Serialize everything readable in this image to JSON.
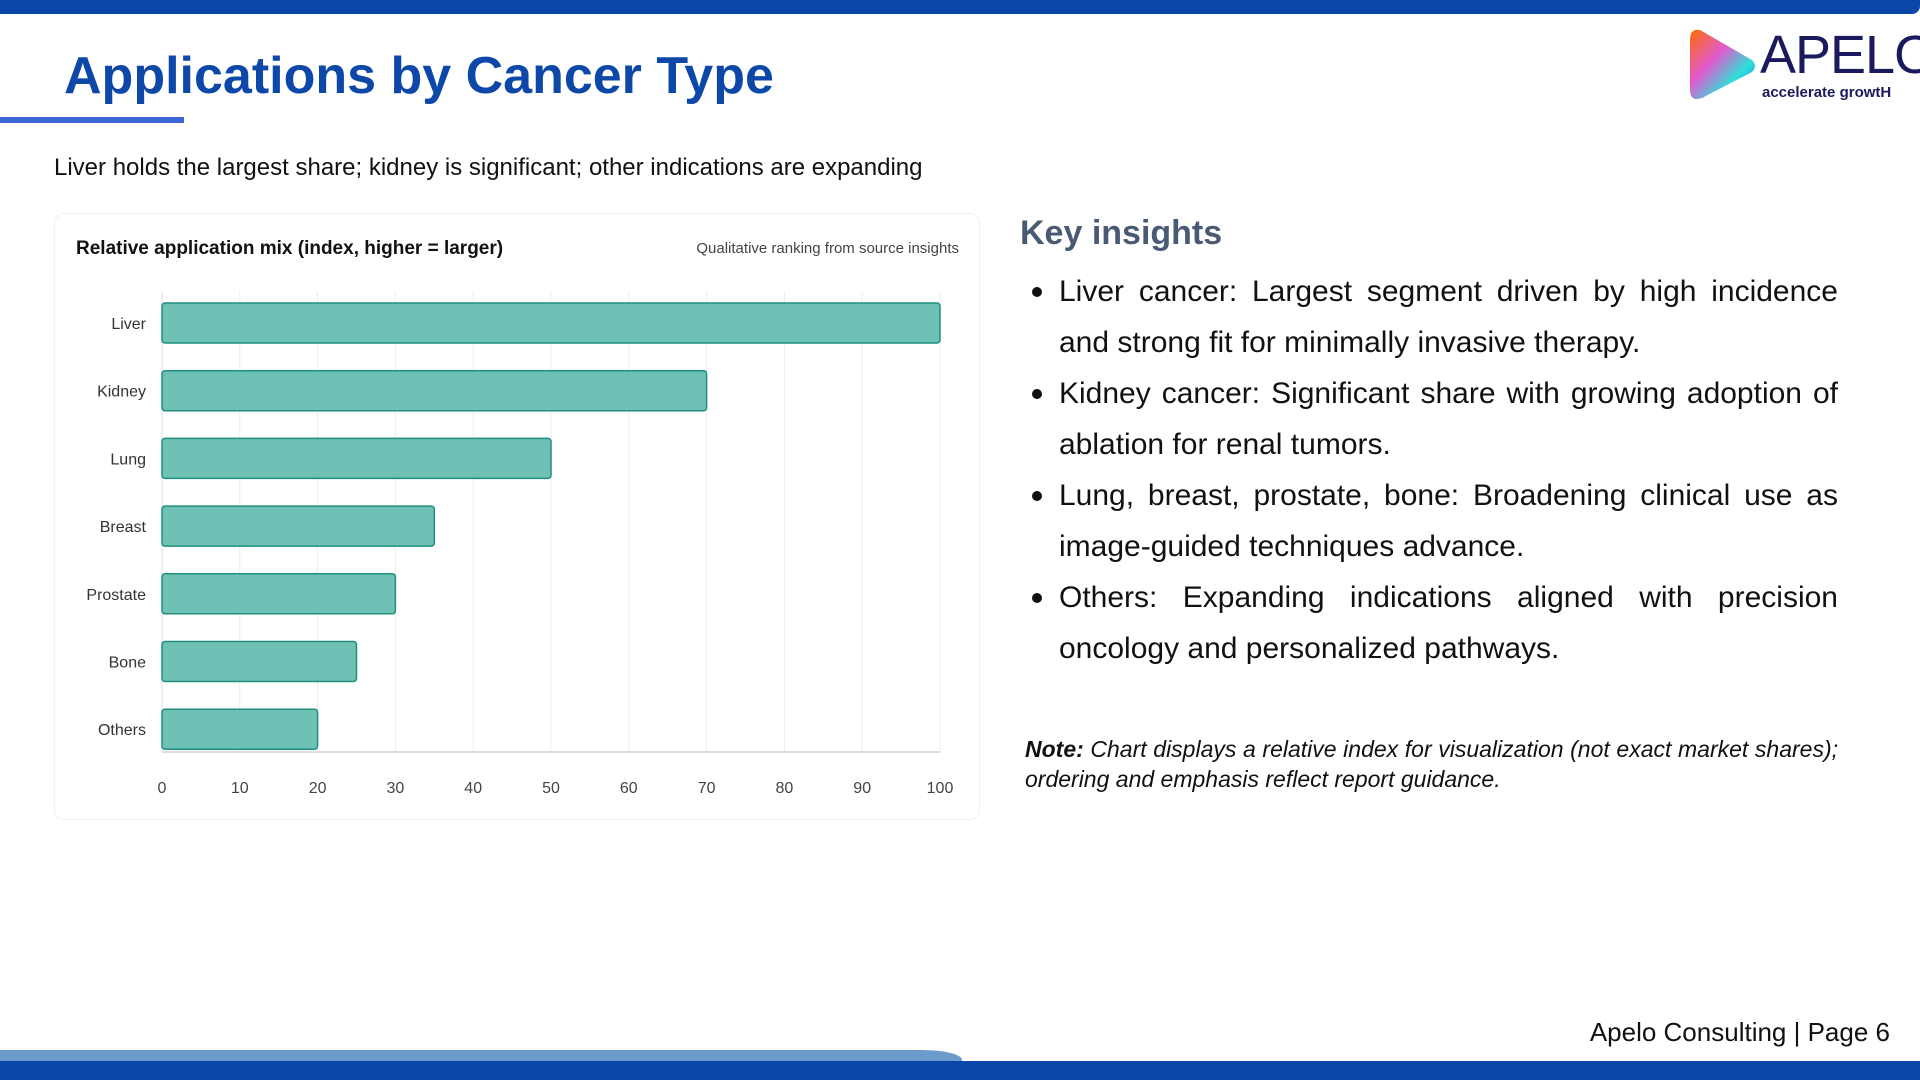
{
  "header": {
    "title": "Applications by Cancer Type",
    "subtitle": "Liver holds the largest share; kidney is significant; other indications are expanding"
  },
  "logo": {
    "word": "APELO",
    "tagline": "accelerate growtH"
  },
  "colors": {
    "brand_blue": "#0a47a8",
    "bar_fill": "#6fc0b5",
    "bar_stroke": "#1f8f7e",
    "heading_gray": "#4a5a72"
  },
  "chart_data": {
    "type": "bar",
    "orientation": "horizontal",
    "title": "Relative application mix (index, higher = larger)",
    "note": "Qualitative ranking from source insights",
    "categories": [
      "Liver",
      "Kidney",
      "Lung",
      "Breast",
      "Prostate",
      "Bone",
      "Others"
    ],
    "values": [
      100,
      70,
      50,
      35,
      30,
      25,
      20
    ],
    "xlim": [
      0,
      100
    ],
    "xticks": [
      0,
      10,
      20,
      30,
      40,
      50,
      60,
      70,
      80,
      90,
      100
    ],
    "grid": true,
    "legend": "none"
  },
  "insights": {
    "title": "Key insights",
    "items": [
      "Liver cancer: Largest segment driven by high incidence and strong fit for minimally invasive therapy.",
      "Kidney cancer: Significant share with growing adoption of ablation for renal tumors.",
      "Lung, breast, prostate, bone: Broadening clinical use as image-guided techniques advance.",
      "Others: Expanding indications aligned with precision oncology and personalized pathways."
    ],
    "note_label": "Note:",
    "note_text": "Chart displays a relative index for visualization (not exact market shares); ordering and emphasis reflect report guidance."
  },
  "footer": {
    "text": "Apelo Consulting | Page 6"
  }
}
